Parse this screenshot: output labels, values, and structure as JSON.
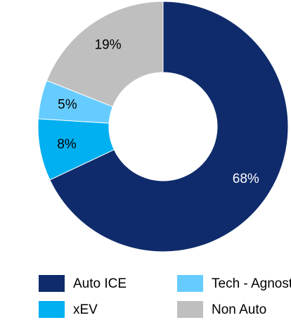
{
  "chart_data": {
    "type": "pie",
    "donut": true,
    "categories": [
      "Auto ICE",
      "xEV",
      "Tech - Agnostic",
      "Non Auto"
    ],
    "values": [
      68,
      8,
      5,
      19
    ],
    "value_labels": [
      "68%",
      "8%",
      "5%",
      "19%"
    ],
    "colors": [
      "#0f2b6b",
      "#00b0f0",
      "#66ccff",
      "#bfbfbf"
    ],
    "label_colors": [
      "#ffffff",
      "#000000",
      "#000000",
      "#000000"
    ],
    "legend": "bottom"
  }
}
